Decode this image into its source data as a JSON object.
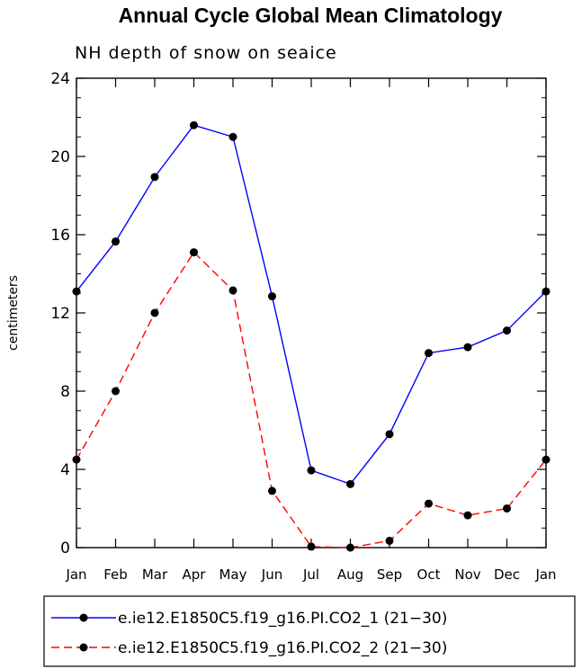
{
  "chart_data": {
    "type": "line",
    "title": "Annual Cycle Global Mean Climatology",
    "subtitle": "NH depth of snow on seaice",
    "xlabel": "",
    "ylabel": "centimeters",
    "categories": [
      "Jan",
      "Feb",
      "Mar",
      "Apr",
      "May",
      "Jun",
      "Jul",
      "Aug",
      "Sep",
      "Oct",
      "Nov",
      "Dec",
      "Jan"
    ],
    "ylim": [
      0,
      24
    ],
    "yticks": [
      "0",
      "4",
      "8",
      "12",
      "16",
      "20",
      "24"
    ],
    "series": [
      {
        "name": "e.ie12.E1850C5.f19_g16.PI.CO2_1 (21−30)",
        "color": "#0000ff",
        "dash": "solid",
        "values": [
          13.1,
          15.65,
          18.95,
          21.6,
          21.0,
          12.85,
          3.95,
          3.25,
          5.8,
          9.95,
          10.25,
          11.1,
          13.1
        ]
      },
      {
        "name": "e.ie12.E1850C5.f19_g16.PI.CO2_2 (21−30)",
        "color": "#ff0000",
        "dash": "dashed",
        "values": [
          4.5,
          8.0,
          12.0,
          15.1,
          13.15,
          2.9,
          0.05,
          0.0,
          0.35,
          2.25,
          1.65,
          2.0,
          4.5
        ]
      }
    ],
    "legend": "bottom"
  }
}
